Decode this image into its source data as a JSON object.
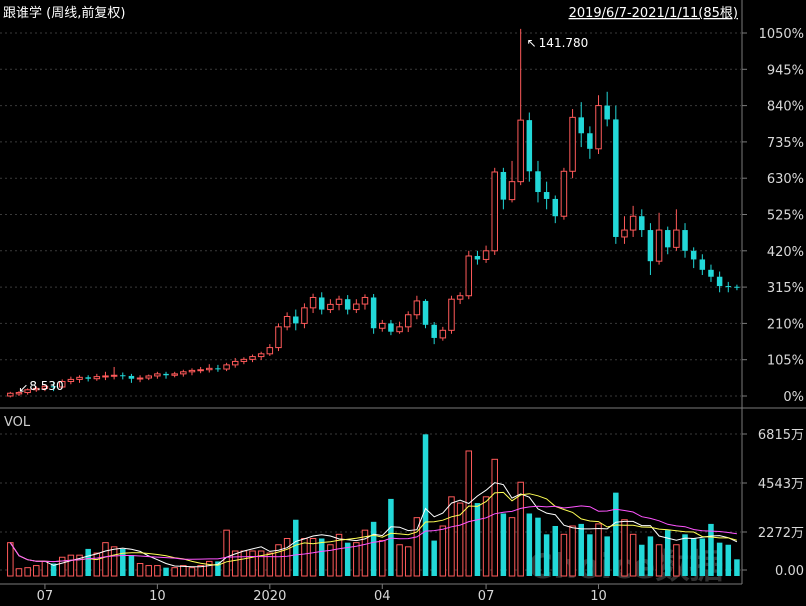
{
  "header": {
    "title": "跟谁学 (周线,前复权)",
    "date_range": "2019/6/7-2021/1/11(85根)"
  },
  "volume_panel": {
    "label": "VOL"
  },
  "watermark": "Choice数据",
  "colors": {
    "up": "#ff5a5a",
    "down": "#22d8d8",
    "ma_white": "#ffffff",
    "ma_yellow": "#ffff55",
    "ma_magenta": "#ff55ff",
    "background": "#000000"
  },
  "chart_data": {
    "type": "candlestick",
    "annotations": {
      "max_label": "141.780",
      "min_label": "8.530"
    },
    "price_axis": {
      "ticks": [
        "1050%",
        "945%",
        "840%",
        "735%",
        "630%",
        "525%",
        "420%",
        "315%",
        "210%",
        "105%",
        "0%"
      ],
      "ylim": [
        -5,
        1080
      ]
    },
    "volume_axis": {
      "ticks": [
        "6815万",
        "4543万",
        "2272万",
        "0.00"
      ],
      "ylim": [
        0,
        7000
      ]
    },
    "x_labels": [
      {
        "label": "07",
        "index": 4
      },
      {
        "label": "10",
        "index": 17
      },
      {
        "label": "2020",
        "index": 30
      },
      {
        "label": "04",
        "index": 43
      },
      {
        "label": "07",
        "index": 55
      },
      {
        "label": "10",
        "index": 68
      }
    ],
    "candles": [
      [
        0,
        8,
        -4,
        12,
        1600
      ],
      [
        6,
        10,
        0,
        14,
        350
      ],
      [
        10,
        18,
        4,
        22,
        400
      ],
      [
        18,
        22,
        12,
        28,
        500
      ],
      [
        22,
        28,
        14,
        34,
        700
      ],
      [
        28,
        26,
        14,
        40,
        600
      ],
      [
        26,
        42,
        22,
        48,
        900
      ],
      [
        42,
        48,
        34,
        56,
        1000
      ],
      [
        48,
        54,
        38,
        60,
        1000
      ],
      [
        54,
        50,
        42,
        60,
        1300
      ],
      [
        50,
        56,
        44,
        64,
        1100
      ],
      [
        56,
        58,
        46,
        70,
        1600
      ],
      [
        58,
        60,
        48,
        84,
        1400
      ],
      [
        60,
        58,
        48,
        68,
        1300
      ],
      [
        58,
        50,
        38,
        64,
        1000
      ],
      [
        50,
        52,
        40,
        60,
        600
      ],
      [
        52,
        58,
        46,
        62,
        500
      ],
      [
        58,
        64,
        50,
        70,
        500
      ],
      [
        64,
        60,
        50,
        70,
        400
      ],
      [
        60,
        64,
        54,
        70,
        400
      ],
      [
        64,
        70,
        56,
        76,
        500
      ],
      [
        70,
        74,
        60,
        80,
        400
      ],
      [
        74,
        76,
        66,
        84,
        500
      ],
      [
        76,
        80,
        68,
        92,
        700
      ],
      [
        80,
        78,
        70,
        90,
        700
      ],
      [
        78,
        90,
        72,
        96,
        2200
      ],
      [
        90,
        100,
        82,
        110,
        1200
      ],
      [
        100,
        106,
        92,
        112,
        1200
      ],
      [
        106,
        114,
        98,
        120,
        1200
      ],
      [
        114,
        122,
        104,
        128,
        1200
      ],
      [
        122,
        140,
        116,
        150,
        1100
      ],
      [
        140,
        200,
        130,
        210,
        1500
      ],
      [
        200,
        230,
        190,
        242,
        1800
      ],
      [
        230,
        210,
        190,
        250,
        2700
      ],
      [
        210,
        255,
        196,
        268,
        1800
      ],
      [
        255,
        285,
        240,
        296,
        1800
      ],
      [
        285,
        250,
        236,
        300,
        1800
      ],
      [
        250,
        265,
        240,
        280,
        1500
      ],
      [
        265,
        280,
        248,
        290,
        2000
      ],
      [
        280,
        250,
        236,
        292,
        1600
      ],
      [
        250,
        266,
        240,
        280,
        1600
      ],
      [
        266,
        285,
        250,
        294,
        2200
      ],
      [
        285,
        196,
        180,
        295,
        2600
      ],
      [
        196,
        210,
        186,
        220,
        1700
      ],
      [
        210,
        186,
        176,
        220,
        3700
      ],
      [
        186,
        200,
        180,
        215,
        1500
      ],
      [
        200,
        235,
        185,
        245,
        1400
      ],
      [
        235,
        275,
        222,
        290,
        2800
      ],
      [
        275,
        206,
        196,
        280,
        6800
      ],
      [
        206,
        168,
        150,
        214,
        1700
      ],
      [
        168,
        190,
        160,
        200,
        2400
      ],
      [
        190,
        280,
        180,
        290,
        3800
      ],
      [
        280,
        290,
        266,
        300,
        3500
      ],
      [
        290,
        405,
        280,
        420,
        6000
      ],
      [
        405,
        395,
        380,
        420,
        3500
      ],
      [
        395,
        420,
        385,
        435,
        3800
      ],
      [
        420,
        648,
        408,
        660,
        5600
      ],
      [
        648,
        568,
        540,
        660,
        3000
      ],
      [
        568,
        620,
        560,
        680,
        2800
      ],
      [
        620,
        798,
        610,
        1062,
        4500
      ],
      [
        798,
        650,
        620,
        820,
        3000
      ],
      [
        650,
        590,
        560,
        680,
        2800
      ],
      [
        590,
        570,
        540,
        620,
        2000
      ],
      [
        570,
        520,
        500,
        580,
        2400
      ],
      [
        520,
        650,
        510,
        660,
        2000
      ],
      [
        650,
        806,
        630,
        830,
        2400
      ],
      [
        806,
        760,
        720,
        850,
        2500
      ],
      [
        760,
        715,
        686,
        780,
        2000
      ],
      [
        715,
        840,
        700,
        870,
        2500
      ],
      [
        840,
        800,
        780,
        880,
        1900
      ],
      [
        800,
        460,
        440,
        840,
        4000
      ],
      [
        460,
        480,
        440,
        520,
        2700
      ],
      [
        480,
        520,
        460,
        550,
        2000
      ],
      [
        520,
        480,
        460,
        540,
        1500
      ],
      [
        480,
        390,
        350,
        500,
        1900
      ],
      [
        390,
        480,
        380,
        530,
        1500
      ],
      [
        480,
        430,
        410,
        490,
        2200
      ],
      [
        430,
        480,
        420,
        540,
        1500
      ],
      [
        480,
        420,
        400,
        500,
        2000
      ],
      [
        420,
        395,
        370,
        430,
        1800
      ],
      [
        395,
        365,
        350,
        410,
        1800
      ],
      [
        365,
        345,
        330,
        380,
        2500
      ],
      [
        345,
        318,
        300,
        360,
        1600
      ],
      [
        318,
        316,
        300,
        330,
        1500
      ],
      [
        316,
        314,
        306,
        322,
        800
      ]
    ]
  }
}
